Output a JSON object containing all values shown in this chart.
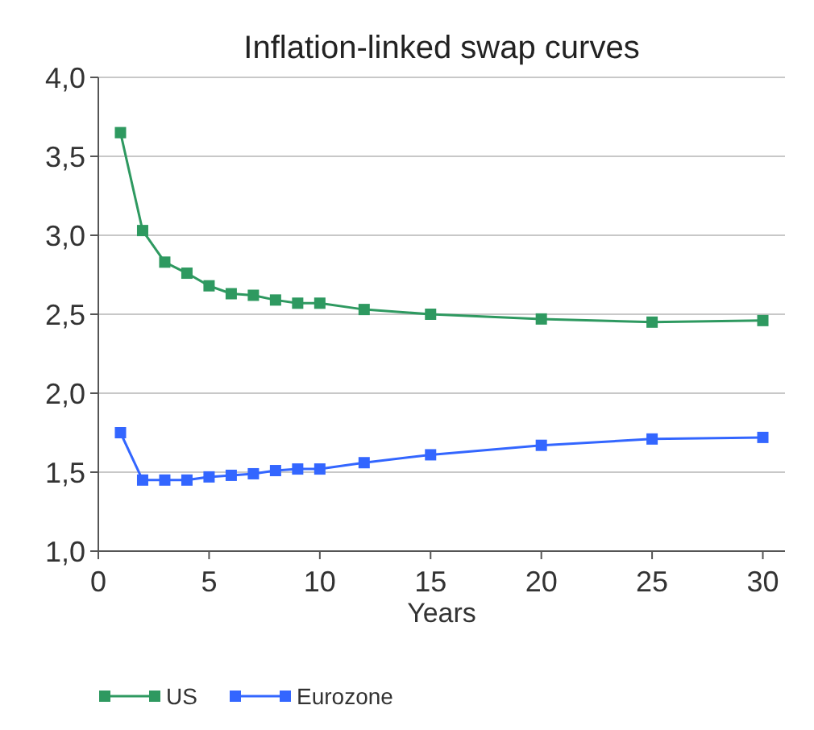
{
  "chart_data": {
    "type": "line",
    "title": "Inflation-linked swap curves",
    "xlabel": "Years",
    "x": [
      1,
      2,
      3,
      4,
      5,
      6,
      7,
      8,
      9,
      10,
      12,
      15,
      20,
      25,
      30
    ],
    "series": [
      {
        "name": "US",
        "color": "#2e9960",
        "values": [
          3.65,
          3.03,
          2.83,
          2.76,
          2.68,
          2.63,
          2.62,
          2.59,
          2.57,
          2.57,
          2.53,
          2.5,
          2.47,
          2.45,
          2.46
        ]
      },
      {
        "name": "Eurozone",
        "color": "#3366ff",
        "values": [
          1.75,
          1.45,
          1.45,
          1.45,
          1.47,
          1.48,
          1.49,
          1.51,
          1.52,
          1.52,
          1.56,
          1.61,
          1.67,
          1.71,
          1.72
        ]
      }
    ],
    "xlim": [
      0,
      31
    ],
    "xticks": [
      0,
      5,
      10,
      15,
      20,
      25,
      30
    ],
    "ylim": [
      1,
      4
    ],
    "yticks": [
      {
        "value": 1,
        "label": "1,0"
      },
      {
        "value": 1.5,
        "label": "1,5"
      },
      {
        "value": 2,
        "label": "2,0"
      },
      {
        "value": 2.5,
        "label": "2,5"
      },
      {
        "value": 3,
        "label": "3,0"
      },
      {
        "value": 3.5,
        "label": "3,5"
      },
      {
        "value": 4,
        "label": "4,0"
      }
    ],
    "grid": "y",
    "legend": "bottom",
    "marker": "square",
    "line_style": "solid"
  }
}
